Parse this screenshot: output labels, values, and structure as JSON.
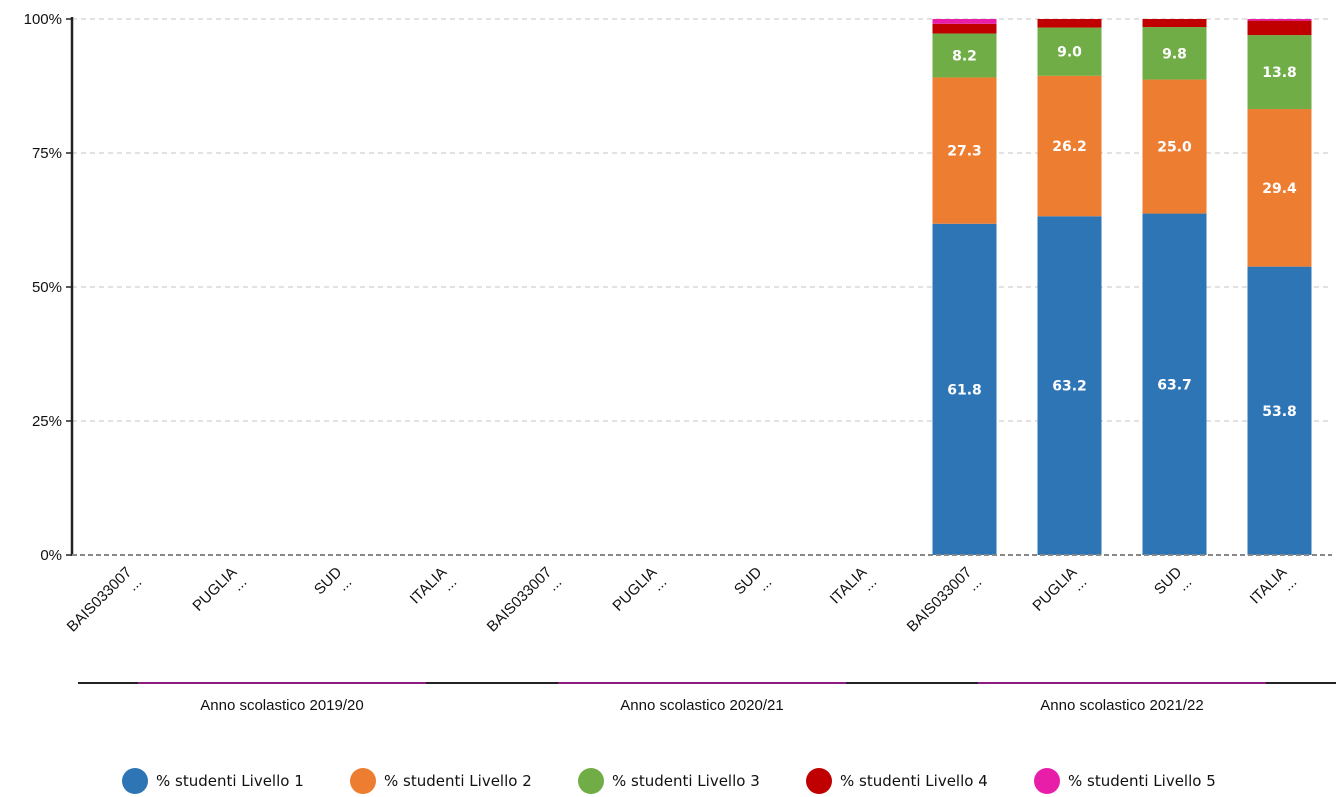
{
  "chart_data": {
    "type": "bar",
    "stacked": true,
    "title": "",
    "xlabel": "",
    "ylabel": "",
    "ylim": [
      0,
      100
    ],
    "y_ticks": [
      "0%",
      "25%",
      "50%",
      "75%",
      "100%"
    ],
    "grid": true,
    "legend_position": "bottom",
    "groups": [
      {
        "label": "Anno scolastico 2019/20",
        "categories": [
          "BAIS033007\n...",
          "PUGLIA\n...",
          "SUD\n...",
          "ITALIA\n..."
        ]
      },
      {
        "label": "Anno scolastico 2020/21",
        "categories": [
          "BAIS033007\n...",
          "PUGLIA\n...",
          "SUD\n...",
          "ITALIA\n..."
        ]
      },
      {
        "label": "Anno scolastico 2021/22",
        "categories": [
          "BAIS033007\n...",
          "PUGLIA\n...",
          "SUD\n...",
          "ITALIA\n..."
        ]
      }
    ],
    "series": [
      {
        "name": "% studenti Livello 1",
        "color": "#2e75b6",
        "values": [
          0,
          0,
          0,
          0,
          0,
          0,
          0,
          0,
          61.8,
          63.2,
          63.7,
          53.8
        ],
        "labels": [
          "",
          "",
          "",
          "",
          "",
          "",
          "",
          "",
          "61.8",
          "63.2",
          "63.7",
          "53.8"
        ]
      },
      {
        "name": "% studenti Livello 2",
        "color": "#ed7d31",
        "values": [
          0,
          0,
          0,
          0,
          0,
          0,
          0,
          0,
          27.3,
          26.2,
          25.0,
          29.4
        ],
        "labels": [
          "",
          "",
          "",
          "",
          "",
          "",
          "",
          "",
          "27.3",
          "26.2",
          "25.0",
          "29.4"
        ]
      },
      {
        "name": "% studenti Livello 3",
        "color": "#70ad47",
        "values": [
          0,
          0,
          0,
          0,
          0,
          0,
          0,
          0,
          8.2,
          9.0,
          9.8,
          13.8
        ],
        "labels": [
          "",
          "",
          "",
          "",
          "",
          "",
          "",
          "",
          "8.2",
          "9.0",
          "9.8",
          "13.8"
        ]
      },
      {
        "name": "% studenti Livello 4",
        "color": "#c00000",
        "values": [
          0,
          0,
          0,
          0,
          0,
          0,
          0,
          0,
          1.8,
          1.6,
          1.5,
          2.7
        ],
        "labels": [
          "",
          "",
          "",
          "",
          "",
          "",
          "",
          "",
          "",
          "",
          "",
          ""
        ]
      },
      {
        "name": "% studenti Livello 5",
        "color": "#e91ea8",
        "values": [
          0,
          0,
          0,
          0,
          0,
          0,
          0,
          0,
          0.9,
          0,
          0,
          0.3
        ],
        "labels": [
          "",
          "",
          "",
          "",
          "",
          "",
          "",
          "",
          "",
          "",
          "",
          ""
        ]
      }
    ]
  }
}
